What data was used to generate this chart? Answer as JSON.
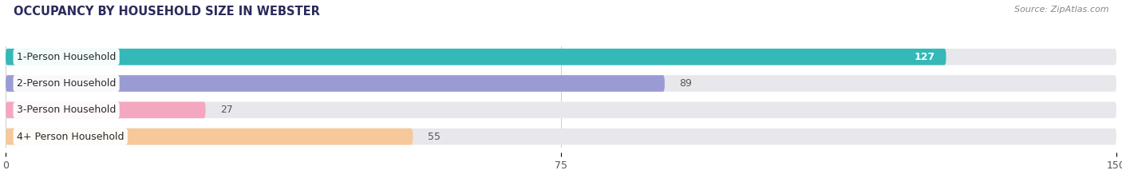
{
  "title": "OCCUPANCY BY HOUSEHOLD SIZE IN WEBSTER",
  "source": "Source: ZipAtlas.com",
  "categories": [
    "1-Person Household",
    "2-Person Household",
    "3-Person Household",
    "4+ Person Household"
  ],
  "values": [
    127,
    89,
    27,
    55
  ],
  "bar_colors": [
    "#34b8b8",
    "#9b9bd4",
    "#f4a8c0",
    "#f6c89a"
  ],
  "bg_bar_color": "#e8e8ec",
  "value_label_inside": [
    true,
    false,
    false,
    false
  ],
  "value_colors_inside": "#ffffff",
  "value_colors_outside": "#555555",
  "xlim": [
    0,
    150
  ],
  "xticks": [
    0,
    75,
    150
  ],
  "bar_height": 0.62,
  "bar_gap": 1.0,
  "figsize": [
    14.06,
    2.33
  ],
  "dpi": 100,
  "title_fontsize": 10.5,
  "label_fontsize": 9,
  "value_fontsize": 9,
  "tick_fontsize": 9,
  "source_fontsize": 8,
  "bg_color": "#ffffff"
}
